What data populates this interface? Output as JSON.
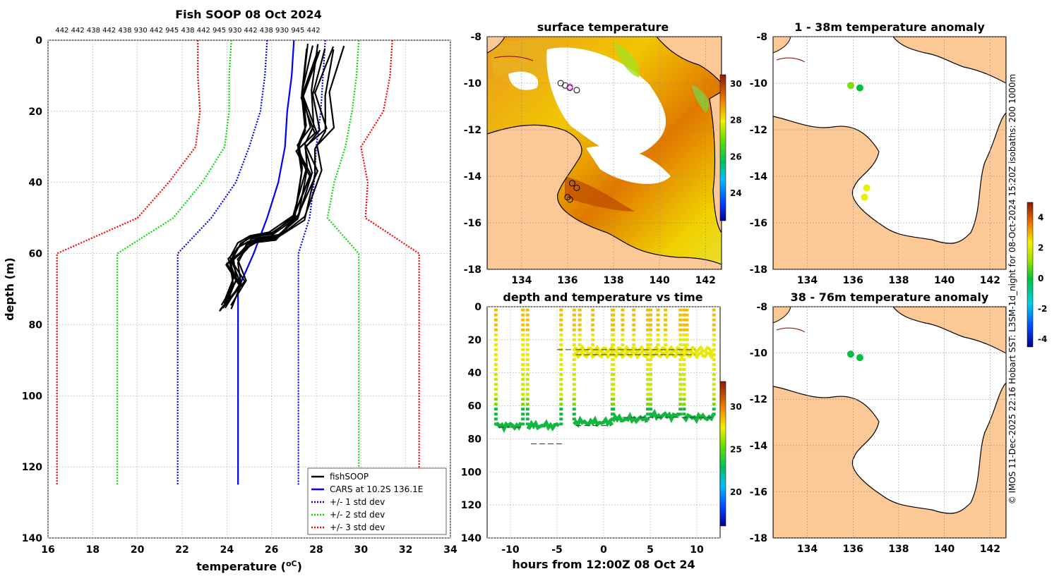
{
  "chart_data": [
    {
      "type": "line",
      "title": "Fish SOOP 08 Oct 2024",
      "vessel_ids": "442 442 438 442 438 930 442 945 438 442 945 930 442 438 930 945 442",
      "xlabel": "temperature (",
      "xlabel_unit": "oC",
      "xlabel_close": ")",
      "ylabel": "depth (m)",
      "xlim": [
        16,
        34
      ],
      "ylim": [
        0,
        140
      ],
      "xticks": [
        "16",
        "18",
        "20",
        "22",
        "24",
        "26",
        "28",
        "30",
        "32",
        "34"
      ],
      "yticks": [
        "0",
        "20",
        "40",
        "60",
        "80",
        "100",
        "120",
        "140"
      ],
      "series": [
        {
          "name": "CARS at 10.2S 136.1E",
          "color": "#0000ff",
          "style": "solid",
          "x": [
            27.0,
            26.9,
            26.7,
            26.6,
            26.3,
            25.8,
            25.2,
            24.5,
            24.5,
            24.5
          ],
          "y": [
            0,
            10,
            20,
            30,
            40,
            50,
            60,
            70,
            100,
            125
          ]
        },
        {
          "name": "+/- 1 std dev (upper)",
          "color": "#0000ff",
          "style": "dotted",
          "x": [
            25.8,
            25.7,
            25.5,
            25.0,
            24.4,
            23.3,
            21.8,
            21.8,
            21.8
          ],
          "y": [
            0,
            10,
            20,
            30,
            40,
            50,
            60,
            100,
            125
          ]
        },
        {
          "name": "+/- 1 std dev (lower)",
          "color": "#0000ff",
          "style": "dotted",
          "x": [
            28.4,
            28.3,
            28.2,
            28.0,
            27.9,
            27.7,
            27.2,
            27.2,
            27.2
          ],
          "y": [
            0,
            10,
            20,
            30,
            40,
            50,
            60,
            100,
            125
          ]
        },
        {
          "name": "+/- 2 std dev (upper)",
          "color": "#00dd00",
          "style": "dotted",
          "x": [
            24.2,
            24.1,
            24.1,
            23.9,
            22.9,
            21.6,
            19.1,
            19.1,
            19.1
          ],
          "y": [
            0,
            10,
            20,
            30,
            40,
            50,
            60,
            100,
            125
          ]
        },
        {
          "name": "+/- 2 std dev (lower)",
          "color": "#00dd00",
          "style": "dotted",
          "x": [
            29.9,
            29.8,
            29.6,
            29.3,
            28.8,
            28.5,
            29.9,
            29.9,
            29.9
          ],
          "y": [
            0,
            10,
            20,
            30,
            40,
            50,
            60,
            100,
            125
          ]
        },
        {
          "name": "+/- 3 std dev (upper)",
          "color": "#ff0000",
          "style": "dotted",
          "x": [
            22.7,
            22.7,
            22.8,
            22.6,
            21.4,
            20.0,
            16.4,
            16.4,
            16.4
          ],
          "y": [
            0,
            10,
            20,
            30,
            40,
            50,
            60,
            100,
            125
          ]
        },
        {
          "name": "+/- 3 std dev (lower)",
          "color": "#ff0000",
          "style": "dotted",
          "x": [
            31.4,
            31.3,
            31.0,
            30.0,
            30.3,
            30.2,
            32.6,
            32.6,
            32.6
          ],
          "y": [
            0,
            10,
            20,
            30,
            40,
            50,
            60,
            100,
            125
          ]
        },
        {
          "name": "fishSOOP",
          "color": "#000000",
          "style": "solid",
          "x": [
            27.6,
            27.6,
            27.5,
            27.4,
            27.3,
            27.2,
            25.8,
            25.2,
            24.4,
            24.3,
            24.2,
            24.0
          ],
          "y": [
            2,
            15,
            25,
            30,
            37,
            50,
            55,
            56,
            58,
            62,
            68,
            75
          ]
        }
      ],
      "legend": [
        "fishSOOP",
        "CARS at 10.2S 136.1E",
        "+/- 1 std dev",
        "+/- 2 std dev",
        "+/- 3 std dev"
      ],
      "legend_position": "bottom-right"
    },
    {
      "type": "heatmap",
      "title": "surface temperature",
      "xticks": [
        "134",
        "136",
        "138",
        "140",
        "142"
      ],
      "yticks": [
        "-8",
        "-10",
        "-12",
        "-14",
        "-16",
        "-18"
      ],
      "colorbar_ticks": [
        "30",
        "28",
        "26",
        "24"
      ],
      "colorbar_range": [
        22.5,
        30.5
      ]
    },
    {
      "type": "heatmap",
      "title": "1 - 38m temperature anomaly",
      "xticks": [
        "134",
        "136",
        "138",
        "140",
        "142"
      ],
      "yticks": [
        "-8",
        "-10",
        "-12",
        "-14",
        "-16",
        "-18"
      ],
      "points": [
        {
          "lon": 135.9,
          "lat": -10.1,
          "anomaly": 0.7
        },
        {
          "lon": 136.3,
          "lat": -10.2,
          "anomaly": 0.5
        },
        {
          "lon": 136.6,
          "lat": -14.5,
          "anomaly": 2.0
        },
        {
          "lon": 136.5,
          "lat": -14.9,
          "anomaly": 2.3
        }
      ]
    },
    {
      "type": "heatmap",
      "title": "38 - 76m temperature anomaly",
      "xticks": [
        "134",
        "136",
        "138",
        "140",
        "142"
      ],
      "yticks": [
        "-8",
        "-10",
        "-12",
        "-14",
        "-16",
        "-18"
      ],
      "points": [
        {
          "lon": 135.9,
          "lat": -10.05,
          "anomaly": 0.4
        },
        {
          "lon": 136.3,
          "lat": -10.2,
          "anomaly": 0.3
        }
      ],
      "colorbar_ticks": [
        "4",
        "2",
        "0",
        "-2",
        "-4"
      ],
      "colorbar_range": [
        -4.5,
        5
      ]
    },
    {
      "type": "scatter",
      "title": "depth and temperature vs time",
      "xlabel": "hours from 12:00Z 08 Oct 24",
      "xlim": [
        -12.5,
        12.5
      ],
      "ylim": [
        0,
        140
      ],
      "xticks": [
        "-10",
        "-5",
        "0",
        "5",
        "10"
      ],
      "yticks": [
        "0",
        "20",
        "40",
        "60",
        "80",
        "100",
        "120",
        "140"
      ],
      "colorbar_ticks": [
        "30",
        "25",
        "20"
      ],
      "colorbar_range": [
        16,
        33
      ],
      "bottom_depth_segments": [
        {
          "x0": -11.3,
          "x1": -8.7,
          "depth": 73
        },
        {
          "x0": -7.8,
          "x1": -4.4,
          "depth": 83
        },
        {
          "x0": -5.0,
          "x1": -3.4,
          "depth": 26
        },
        {
          "x0": -3.0,
          "x1": 0.8,
          "depth": 72
        },
        {
          "x0": -3.0,
          "x1": 9.8,
          "depth": 26
        },
        {
          "x0": -3.0,
          "x1": 9.8,
          "depth": 29
        },
        {
          "x0": 2.0,
          "x1": 11.6,
          "depth": 67
        }
      ],
      "dives": [
        {
          "start": -11.6,
          "end": -8.7,
          "bottom": 72
        },
        {
          "start": -8.2,
          "end": -4.6,
          "bottom": 72
        },
        {
          "start": -3.2,
          "end": 0.9,
          "bottom": 70
        },
        {
          "start": 1.0,
          "end": 4.7,
          "bottom": 68
        },
        {
          "start": 5.0,
          "end": 8.2,
          "bottom": 66
        },
        {
          "start": 8.6,
          "end": 11.8,
          "bottom": 67
        }
      ]
    }
  ],
  "credit": "© IMOS 11-Dec-2025 22:16 Hobart SST: L3SM-1d_night for 08-Oct-2024 15:20Z isobaths: 200  1000m"
}
